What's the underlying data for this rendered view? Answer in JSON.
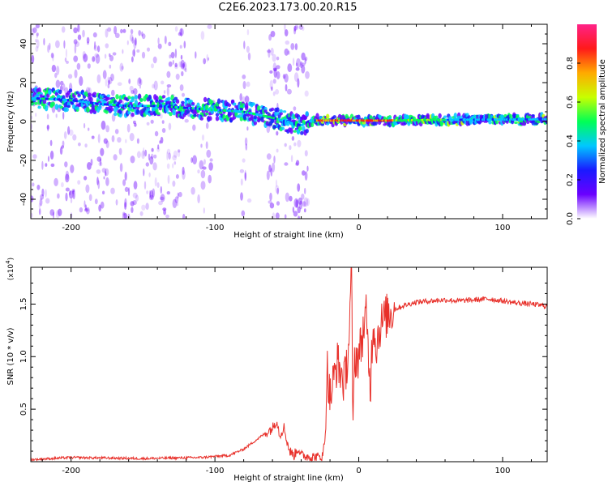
{
  "title": "C2E6.2023.173.00.20.R15",
  "colors": {
    "spec_bg": "#ffffff",
    "trace": "#e8302a",
    "scatter": "#6a00ff"
  },
  "chart_data": [
    {
      "type": "heatmap",
      "xlabel": "Height of straight line (km)",
      "ylabel": "Frequency (Hz)",
      "xlim": [
        -228,
        131
      ],
      "ylim": [
        -50,
        50
      ],
      "x_ticks": [
        -200,
        -100,
        0,
        100
      ],
      "y_ticks": [
        -40,
        -20,
        0,
        20,
        40
      ],
      "grid": false,
      "ridge": {
        "x": [
          -228,
          -200,
          -180,
          -160,
          -140,
          -120,
          -100,
          -80,
          -60,
          -50,
          -40,
          -35,
          -30,
          -20,
          0,
          20,
          50,
          100,
          131
        ],
        "freq": [
          12,
          11,
          9,
          8,
          8,
          7,
          6,
          5,
          2,
          0,
          -2,
          0,
          0.5,
          0.5,
          0.5,
          0.5,
          0.8,
          1.0,
          1.2
        ]
      },
      "colorbar": {
        "label": "Normalized spectral amplitude",
        "range": [
          0.0,
          1.0
        ],
        "ticks": [
          0.0,
          0.2,
          0.4,
          0.6,
          0.8
        ],
        "colormap": [
          "#ffffff",
          "#6a00ff",
          "#1a1aff",
          "#00c8ff",
          "#00ff55",
          "#c8ff00",
          "#ffaa00",
          "#ff1a1a",
          "#ff2288"
        ]
      }
    },
    {
      "type": "line",
      "xlabel": "Height of straight line (km)",
      "ylabel": "SNR (10 * v/v)",
      "y_multiplier": "(x10",
      "y_exponent": "4",
      "y_multiplier_close": ")",
      "xlim": [
        -228,
        131
      ],
      "ylim": [
        0.0,
        1.85
      ],
      "x_ticks": [
        -200,
        -100,
        0,
        100
      ],
      "y_ticks": [
        0.5,
        1.0,
        1.5
      ],
      "grid": false,
      "series": [
        {
          "x": [
            -228,
            -200,
            -150,
            -110,
            -90,
            -80,
            -70,
            -60,
            -57,
            -55,
            -52,
            -50,
            -48,
            -45,
            -42,
            -40,
            -35,
            -30,
            -25,
            -23,
            -22,
            -20,
            -15,
            -10,
            -7,
            -5,
            -4,
            -3,
            0,
            5,
            8,
            10,
            12,
            15,
            20,
            25,
            30,
            40,
            50,
            60,
            70,
            80,
            90,
            100,
            110,
            120,
            131
          ],
          "y": [
            0.02,
            0.04,
            0.03,
            0.04,
            0.06,
            0.12,
            0.22,
            0.32,
            0.4,
            0.25,
            0.33,
            0.2,
            0.1,
            0.06,
            0.13,
            0.06,
            0.05,
            0.04,
            0.05,
            0.3,
            0.9,
            0.6,
            0.95,
            0.75,
            1.1,
            1.82,
            0.2,
            1.0,
            1.0,
            1.4,
            0.7,
            1.35,
            1.1,
            1.3,
            1.4,
            1.45,
            1.48,
            1.52,
            1.53,
            1.54,
            1.53,
            1.54,
            1.55,
            1.53,
            1.51,
            1.5,
            1.48
          ]
        }
      ]
    }
  ]
}
